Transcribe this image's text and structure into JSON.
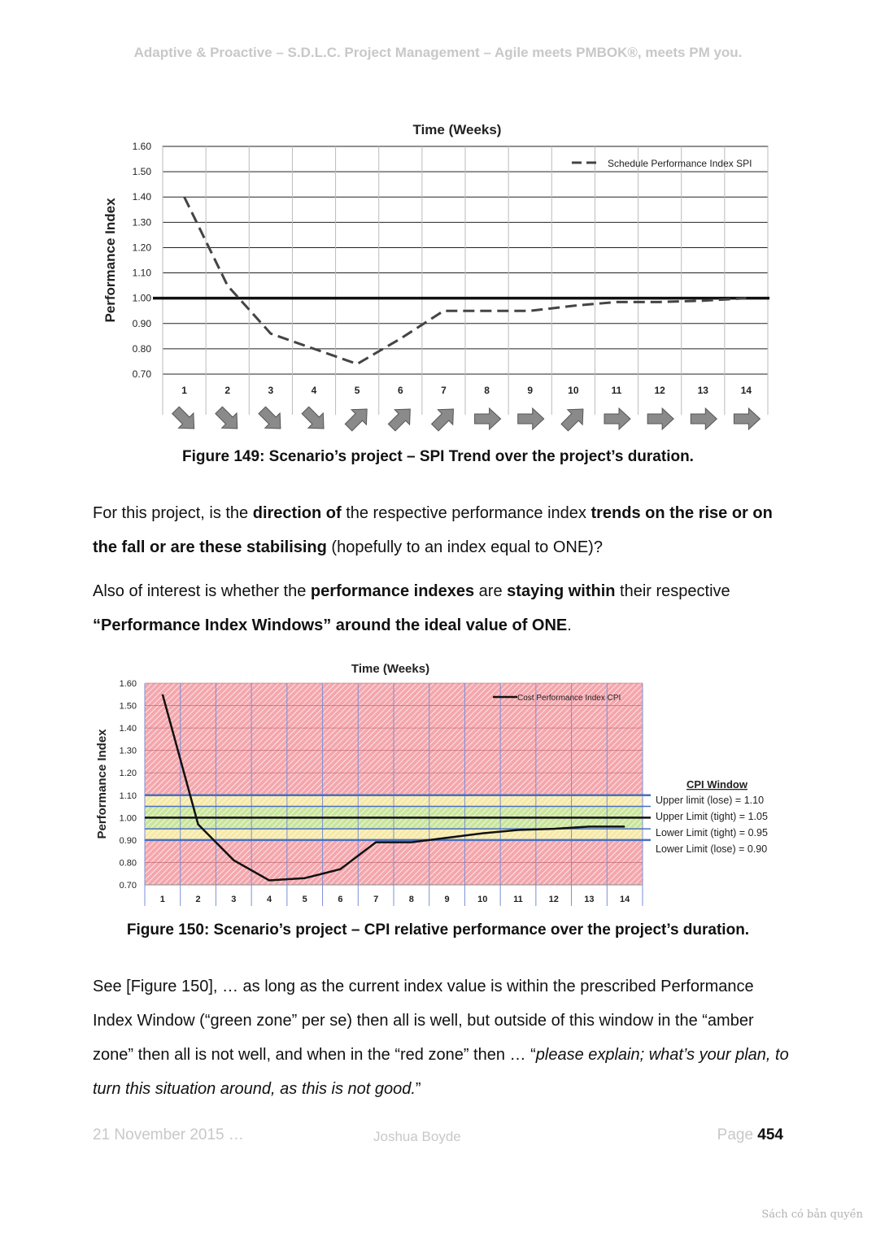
{
  "header": {
    "running_title": "Adaptive & Proactive – S.D.L.C. Project Management – Agile meets PMBOK®, meets PM you."
  },
  "figure149": {
    "caption": "Figure 149: Scenario’s project – SPI Trend over the project’s duration.",
    "trend_arrows": [
      "down",
      "down",
      "down",
      "down",
      "up",
      "up",
      "up",
      "right",
      "right",
      "up",
      "right",
      "right",
      "right",
      "right"
    ],
    "colors": {
      "line": "#444444",
      "baseline": "#111111",
      "arrow_fill": "#8a8a8a"
    }
  },
  "figure150": {
    "caption": "Figure 150: Scenario’s project – CPI relative performance over the project’s duration.",
    "window": {
      "title": "CPI Window",
      "lines": [
        "Upper limit (lose)  = 1.10",
        "Upper Limit (tight) = 1.05",
        "Lower Limit (tight) = 0.95",
        "Lower Limit (lose)  = 0.90"
      ]
    },
    "colors": {
      "red_zone": "#f4a7ad",
      "amber_zone": "#f6e9a6",
      "green_zone": "#c9e59b",
      "limit_line": "#4a6fc1",
      "line": "#111111"
    }
  },
  "chart_data": [
    {
      "type": "line",
      "title": "Time (Weeks)",
      "ylabel": "Performance Index",
      "xlabel": "",
      "categories": [
        "1",
        "2",
        "3",
        "4",
        "5",
        "6",
        "7",
        "8",
        "9",
        "10",
        "11",
        "12",
        "13",
        "14"
      ],
      "series": [
        {
          "name": "Schedule Performance Index SPI",
          "values": [
            1.4,
            1.05,
            0.86,
            0.8,
            0.74,
            0.84,
            0.95,
            0.95,
            0.95,
            0.97,
            0.985,
            0.985,
            0.99,
            1.0
          ],
          "style": "dashed"
        }
      ],
      "reference_line": 1.0,
      "ylim": [
        0.7,
        1.6
      ],
      "yticks": [
        "0.70",
        "0.80",
        "0.90",
        "1.00",
        "1.10",
        "1.20",
        "1.30",
        "1.40",
        "1.50",
        "1.60"
      ],
      "grid": true,
      "legend": "top-right"
    },
    {
      "type": "line",
      "title": "Time (Weeks)",
      "ylabel": "Performance Index",
      "xlabel": "",
      "categories": [
        "1",
        "2",
        "3",
        "4",
        "5",
        "6",
        "7",
        "8",
        "9",
        "10",
        "11",
        "12",
        "13",
        "14"
      ],
      "series": [
        {
          "name": "Cost Performance Index CPI",
          "values": [
            1.55,
            0.97,
            0.81,
            0.72,
            0.73,
            0.77,
            0.89,
            0.89,
            0.91,
            0.93,
            0.945,
            0.95,
            0.96,
            0.96
          ],
          "style": "solid"
        }
      ],
      "reference_line": 1.0,
      "limits": [
        1.1,
        1.05,
        0.95,
        0.9
      ],
      "ylim": [
        0.7,
        1.6
      ],
      "yticks": [
        "0.70",
        "0.80",
        "0.90",
        "1.00",
        "1.10",
        "1.20",
        "1.30",
        "1.40",
        "1.50",
        "1.60"
      ],
      "grid": true,
      "legend": "top-right"
    }
  ],
  "paragraphs": {
    "p1": {
      "a": "For this project, is the ",
      "b": "direction of",
      "c": " the respective performance index ",
      "d": "trends on the rise or on the fall or are these stabilising",
      "e": " (hopefully to an index equal to ONE)?"
    },
    "p2": {
      "a": "Also of interest is whether the ",
      "b": "performance indexes",
      "c": " are ",
      "d": "staying within",
      "e": " their respective ",
      "f": "“Performance Index Windows” around the ideal value of ONE",
      "g": "."
    },
    "p3": {
      "a": "See [Figure 150], … as long as the current index value is within the prescribed Performance Index Window (“green zone” per se) then all is well, but outside of this window in the “amber zone” then all is not well, and when in the “red zone” then … “",
      "b": "please explain; what’s your plan, to turn this situation around, as this is not good.",
      "c": "”"
    }
  },
  "footer": {
    "date": "21 November 2015 …",
    "author": "Joshua Boyde",
    "page_label": "Page",
    "page_number": "454"
  },
  "watermark": "Sách có bản quyền"
}
